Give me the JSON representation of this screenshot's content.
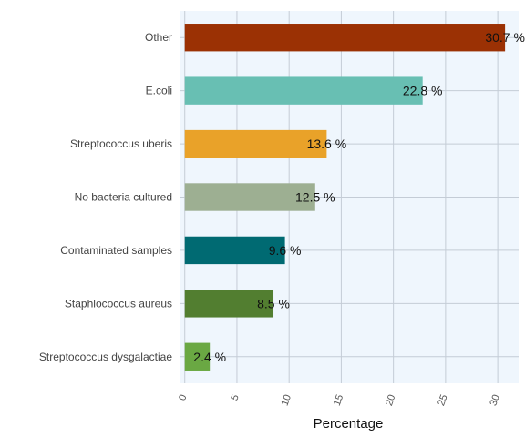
{
  "chart_data": {
    "type": "bar",
    "orientation": "horizontal",
    "categories": [
      "Other",
      "E.coli",
      "Streptococcus uberis",
      "No bacteria cultured",
      "Contaminated samples",
      "Staphlococcus aureus",
      "Streptococcus dysgalactiae"
    ],
    "values": [
      30.7,
      22.8,
      13.6,
      12.5,
      9.6,
      8.5,
      2.4
    ],
    "data_labels": [
      "30.7 %",
      "22.8 %",
      "13.6 %",
      "12.5 %",
      "9.6 %",
      "8.5 %",
      "2.4 %"
    ],
    "bar_colors": [
      "#9b3104",
      "#68bfb3",
      "#e9a229",
      "#9daf92",
      "#006a72",
      "#527e30",
      "#6aa843"
    ],
    "xlabel": "Percentage",
    "ylabel": "",
    "xlim": [
      -0.5,
      32.0
    ],
    "xticks": [
      0,
      5,
      10,
      15,
      20,
      25,
      30
    ],
    "grid": true,
    "plot_background": "#eff6fd"
  }
}
